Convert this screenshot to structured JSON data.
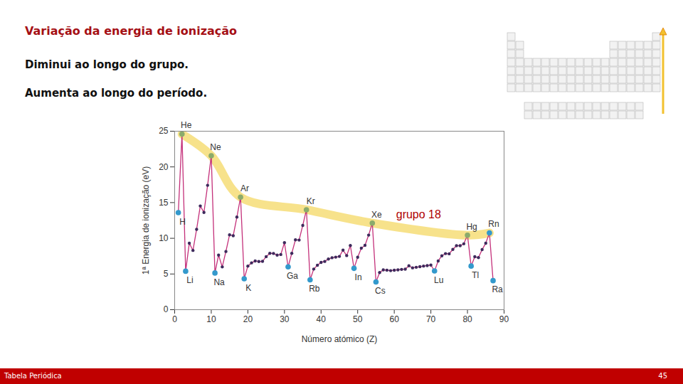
{
  "slide": {
    "title": "Variação da energia de ionização",
    "bullets": [
      "Diminui ao longo do grupo.",
      "Aumenta ao longo do período."
    ],
    "footer": "Tabela Periódica",
    "page": "45"
  },
  "chart_data": {
    "type": "line",
    "x_label": "Número atómico (Z)",
    "y_label": "1ª Energia de ionização (eV)",
    "x": [
      1,
      2,
      3,
      4,
      5,
      6,
      7,
      8,
      9,
      10,
      11,
      12,
      13,
      14,
      15,
      16,
      17,
      18,
      19,
      20,
      21,
      22,
      23,
      24,
      25,
      26,
      27,
      28,
      29,
      30,
      31,
      32,
      33,
      34,
      35,
      36,
      37,
      38,
      39,
      40,
      41,
      42,
      43,
      44,
      45,
      46,
      47,
      48,
      49,
      50,
      51,
      52,
      53,
      54,
      55,
      56,
      57,
      58,
      59,
      60,
      61,
      62,
      63,
      64,
      65,
      66,
      67,
      68,
      69,
      70,
      71,
      72,
      73,
      74,
      75,
      76,
      77,
      78,
      79,
      80,
      81,
      82,
      83,
      84,
      85,
      86,
      87
    ],
    "values": [
      13.6,
      24.59,
      5.39,
      9.32,
      8.3,
      11.26,
      14.53,
      13.62,
      17.42,
      21.56,
      5.14,
      7.65,
      5.99,
      8.15,
      10.49,
      10.36,
      12.97,
      15.76,
      4.34,
      6.11,
      6.56,
      6.83,
      6.75,
      6.77,
      7.43,
      7.9,
      7.88,
      7.64,
      7.73,
      9.39,
      6.0,
      7.9,
      9.79,
      9.75,
      11.81,
      14.0,
      4.18,
      5.69,
      6.22,
      6.63,
      6.76,
      7.09,
      7.28,
      7.36,
      7.46,
      8.34,
      7.58,
      8.99,
      5.79,
      7.34,
      8.61,
      9.01,
      10.45,
      12.13,
      3.89,
      5.21,
      5.58,
      5.54,
      5.47,
      5.53,
      5.58,
      5.64,
      5.67,
      6.15,
      5.86,
      5.94,
      6.02,
      6.11,
      6.18,
      6.25,
      5.43,
      6.83,
      7.55,
      7.86,
      7.83,
      8.44,
      8.97,
      8.96,
      9.23,
      10.44,
      6.11,
      7.42,
      7.29,
      8.41,
      9.32,
      10.75,
      4.07
    ],
    "color": "#c4307a",
    "marker": "circle",
    "xlim": [
      0,
      90
    ],
    "xticks": [
      0,
      10,
      20,
      30,
      40,
      50,
      60,
      70,
      80,
      90
    ],
    "ylim": [
      0,
      25
    ],
    "yticks": [
      0,
      5,
      10,
      15,
      20,
      25
    ],
    "grid": false,
    "band": {
      "x": [
        2,
        10,
        18,
        36,
        54,
        80,
        86
      ],
      "values": [
        24.59,
        21.56,
        15.76,
        14.0,
        12.13,
        10.44,
        10.75
      ],
      "color": "#f6df7e"
    },
    "point_labels": [
      {
        "text": "H",
        "x": 1,
        "color": "#3399cc"
      },
      {
        "text": "He",
        "x": 2,
        "color": "#8bab6b"
      },
      {
        "text": "Li",
        "x": 3,
        "color": "#3399cc"
      },
      {
        "text": "Ne",
        "x": 10,
        "color": "#8bab6b"
      },
      {
        "text": "Na",
        "x": 11,
        "color": "#3399cc"
      },
      {
        "text": "Ar",
        "x": 18,
        "color": "#8bab6b"
      },
      {
        "text": "K",
        "x": 19,
        "color": "#3399cc"
      },
      {
        "text": "Ga",
        "x": 31,
        "color": "#3399cc"
      },
      {
        "text": "Kr",
        "x": 36,
        "color": "#8bab6b"
      },
      {
        "text": "Rb",
        "x": 37,
        "color": "#3399cc"
      },
      {
        "text": "In",
        "x": 49,
        "color": "#3399cc"
      },
      {
        "text": "Xe",
        "x": 54,
        "color": "#8bab6b"
      },
      {
        "text": "Cs",
        "x": 55,
        "color": "#3399cc"
      },
      {
        "text": "Lu",
        "x": 71,
        "color": "#3399cc"
      },
      {
        "text": "Hg",
        "x": 80,
        "color": "#8bab6b"
      },
      {
        "text": "Tl",
        "x": 81,
        "color": "#3399cc"
      },
      {
        "text": "Rn",
        "x": 86,
        "color": "#3399cc"
      },
      {
        "text": "Ra",
        "x": 87,
        "color": "#3399cc"
      }
    ],
    "annotations": [
      {
        "text": "grupo 18",
        "x": 60.5,
        "y": 13.3,
        "color": "#b00000"
      }
    ]
  }
}
